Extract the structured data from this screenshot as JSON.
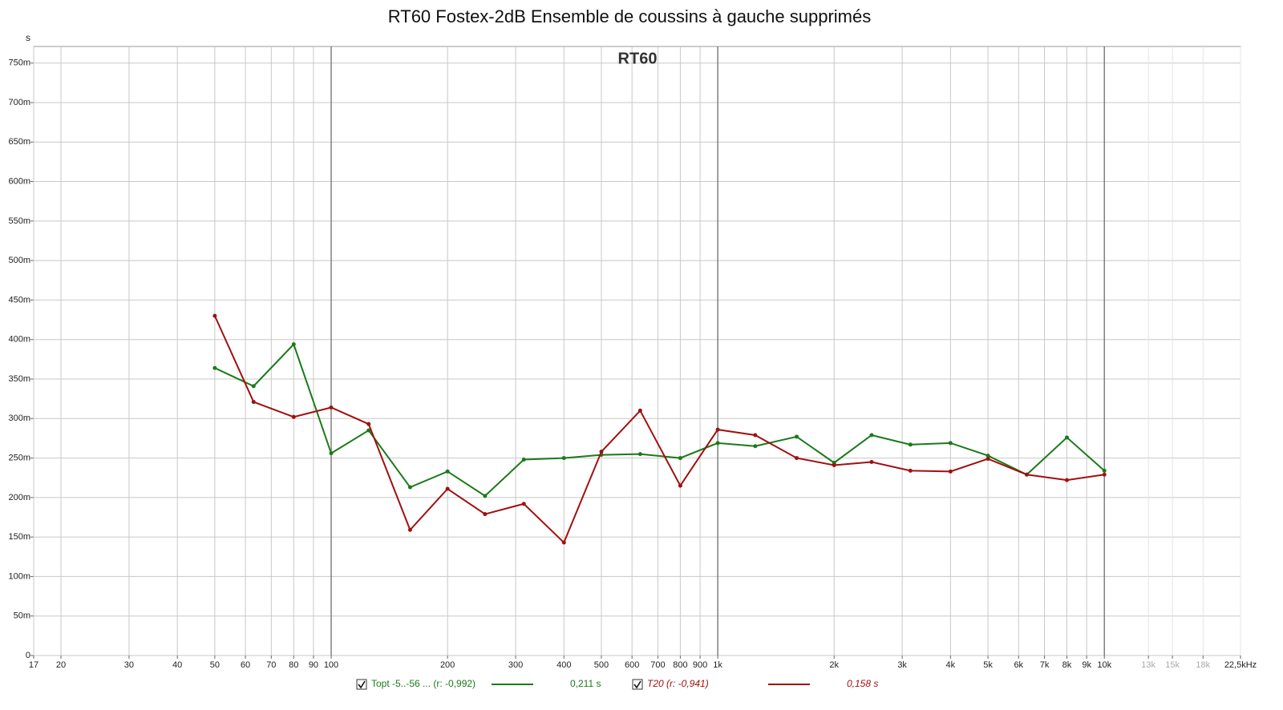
{
  "chart_data": {
    "type": "line",
    "title": "RT60 Fostex-2dB Ensemble de coussins à gauche supprimés",
    "subtitle": "RT60",
    "y_label": "s",
    "x_scale": "log",
    "grid": true,
    "xlim": [
      17,
      22500
    ],
    "ylim": [
      0,
      0.771
    ],
    "xticks": [
      17,
      20,
      30,
      40,
      50,
      60,
      70,
      80,
      90,
      100,
      200,
      300,
      400,
      500,
      600,
      700,
      800,
      900,
      {
        "value": 1000,
        "label": "1k"
      },
      {
        "value": 2000,
        "label": "2k"
      },
      {
        "value": 3000,
        "label": "3k"
      },
      {
        "value": 4000,
        "label": "4k"
      },
      {
        "value": 5000,
        "label": "5k"
      },
      {
        "value": 6000,
        "label": "6k"
      },
      {
        "value": 7000,
        "label": "7k"
      },
      {
        "value": 8000,
        "label": "8k"
      },
      {
        "value": 9000,
        "label": "9k"
      },
      {
        "value": 10000,
        "label": "10k"
      },
      {
        "value": 13000,
        "label": "13k"
      },
      {
        "value": 15000,
        "label": "15k"
      },
      {
        "value": 18000,
        "label": "18k"
      },
      {
        "value": 22500,
        "label": "22,5kHz"
      }
    ],
    "yticks": [
      {
        "value": 0,
        "label": "0"
      },
      {
        "value": 0.05,
        "label": "50m"
      },
      {
        "value": 0.1,
        "label": "100m"
      },
      {
        "value": 0.15,
        "label": "150m"
      },
      {
        "value": 0.2,
        "label": "200m"
      },
      {
        "value": 0.25,
        "label": "250m"
      },
      {
        "value": 0.3,
        "label": "300m"
      },
      {
        "value": 0.35,
        "label": "350m"
      },
      {
        "value": 0.4,
        "label": "400m"
      },
      {
        "value": 0.45,
        "label": "450m"
      },
      {
        "value": 0.5,
        "label": "500m"
      },
      {
        "value": 0.55,
        "label": "550m"
      },
      {
        "value": 0.6,
        "label": "600m"
      },
      {
        "value": 0.65,
        "label": "650m"
      },
      {
        "value": 0.7,
        "label": "700m"
      },
      {
        "value": 0.75,
        "label": "750m"
      }
    ],
    "x": [
      50,
      63,
      80,
      100,
      125,
      160,
      200,
      250,
      315,
      400,
      500,
      630,
      800,
      1000,
      1250,
      1600,
      2000,
      2500,
      3150,
      4000,
      5000,
      6300,
      8000,
      10000
    ],
    "series": [
      {
        "name": "Topt -5..-56 ... (r: -0,992)",
        "summary": "0,211 s",
        "color": "#1a7a1a",
        "values": [
          0.364,
          0.341,
          0.394,
          0.256,
          0.285,
          0.213,
          0.233,
          0.202,
          0.248,
          0.25,
          0.254,
          0.255,
          0.25,
          0.269,
          0.265,
          0.277,
          0.244,
          0.279,
          0.267,
          0.269,
          0.253,
          0.229,
          0.276,
          0.234
        ]
      },
      {
        "name": "T20 (r: -0,941)",
        "summary": "0,158 s",
        "color": "#a01010",
        "values": [
          0.43,
          0.321,
          0.302,
          0.314,
          0.293,
          0.159,
          0.211,
          0.179,
          0.192,
          0.143,
          0.258,
          0.31,
          0.215,
          0.286,
          0.279,
          0.25,
          0.241,
          0.245,
          0.234,
          0.233,
          0.249,
          0.229,
          0.222,
          0.229
        ]
      }
    ]
  }
}
